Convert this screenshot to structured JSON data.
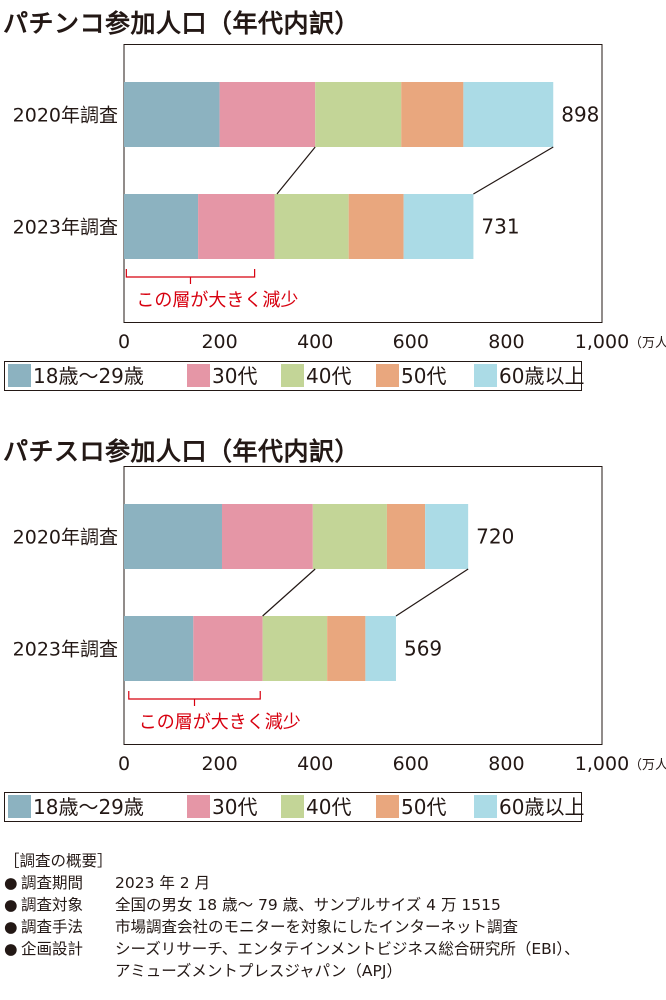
{
  "palette": [
    "#8cb2c0",
    "#e596a6",
    "#c3d597",
    "#e9a77e",
    "#abdbe6"
  ],
  "accent_red": "#d7000f",
  "charts_text": [
    {
      "title": "パチンコ参加人口（年代内訳）"
    },
    {
      "title": "パチスロ参加人口（年代内訳）"
    }
  ],
  "chart_data": [
    {
      "type": "bar",
      "title": "パチンコ参加人口（年代内訳）",
      "orientation": "horizontal",
      "stacked": true,
      "categories": [
        "2020年調査",
        "2023年調査"
      ],
      "series": [
        {
          "name": "18歳〜29歳",
          "values": [
            200,
            155
          ]
        },
        {
          "name": "30代",
          "values": [
            200,
            160
          ]
        },
        {
          "name": "40代",
          "values": [
            180,
            155
          ]
        },
        {
          "name": "50代",
          "values": [
            130,
            115
          ]
        },
        {
          "name": "60歳以上",
          "values": [
            188,
            146
          ]
        }
      ],
      "totals": [
        898,
        731
      ],
      "xlim": [
        0,
        1000
      ],
      "xticks": [
        0,
        200,
        400,
        600,
        800,
        1000
      ],
      "xtick_labels": [
        "0",
        "200",
        "400",
        "600",
        "800",
        "1,000"
      ],
      "unit_label": "（万人）",
      "annotation": "この層が大きく減少",
      "annotation_span": [
        30,
        290
      ],
      "connector_lines": [
        {
          "from": 400,
          "to": 320
        },
        {
          "from": 898,
          "to": 731
        }
      ],
      "legend_position": "bottom",
      "grid": false
    },
    {
      "type": "bar",
      "title": "パチスロ参加人口（年代内訳）",
      "orientation": "horizontal",
      "stacked": true,
      "categories": [
        "2020年調査",
        "2023年調査"
      ],
      "series": [
        {
          "name": "18歳〜29歳",
          "values": [
            205,
            145
          ]
        },
        {
          "name": "30代",
          "values": [
            190,
            145
          ]
        },
        {
          "name": "40代",
          "values": [
            155,
            135
          ]
        },
        {
          "name": "50代",
          "values": [
            80,
            80
          ]
        },
        {
          "name": "60歳以上",
          "values": [
            90,
            64
          ]
        }
      ],
      "totals": [
        720,
        569
      ],
      "xlim": [
        0,
        1000
      ],
      "xticks": [
        0,
        200,
        400,
        600,
        800,
        1000
      ],
      "xtick_labels": [
        "0",
        "200",
        "400",
        "600",
        "800",
        "1,000"
      ],
      "unit_label": "（万人）",
      "annotation": "この層が大きく減少",
      "annotation_span": [
        10,
        285
      ],
      "connector_lines": [
        {
          "from": 400,
          "to": 290
        },
        {
          "from": 720,
          "to": 569
        }
      ],
      "legend_position": "bottom",
      "grid": false
    }
  ],
  "legend": [
    "18歳〜29歳",
    "30代",
    "40代",
    "50代",
    "60歳以上"
  ],
  "survey": {
    "heading": "［調査の概要］",
    "bullet": "●",
    "rows": [
      {
        "label": "調査期間",
        "value": "2023 年 2 月"
      },
      {
        "label": "調査対象",
        "value": "全国の男女 18 歳〜 79 歳、サンプルサイズ 4 万 1515"
      },
      {
        "label": "調査手法",
        "value": "市場調査会社のモニターを対象にしたインターネット調査"
      },
      {
        "label": "企画設計",
        "value": "シーズリサーチ、エンタテインメントビジネス総合研究所（EBI）、"
      }
    ],
    "continuation": "アミューズメントプレスジャパン（APJ）"
  }
}
